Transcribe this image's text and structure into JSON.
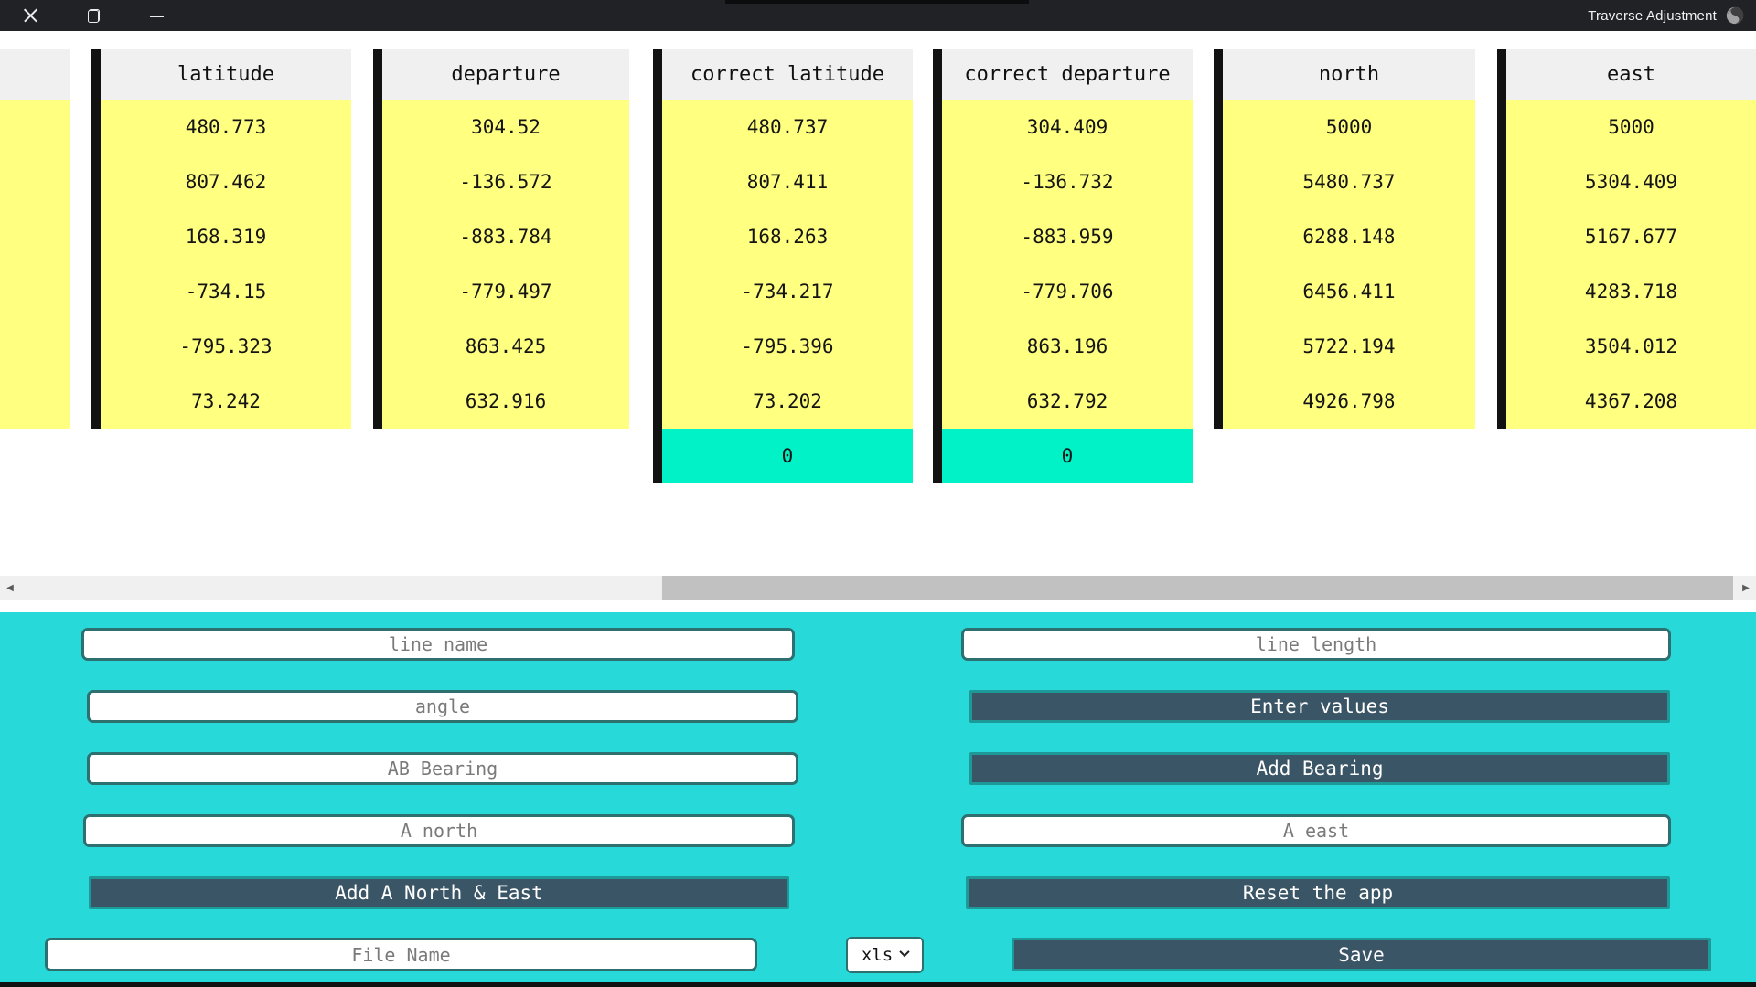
{
  "window": {
    "title": "Traverse Adjustment"
  },
  "icons": {
    "close": "close-icon",
    "restore": "restore-icon",
    "minimize": "minimize-icon",
    "globe": "globe-icon",
    "scroll_left_glyph": "◀",
    "scroll_right_glyph": "▶",
    "format_chevron": "chevron-down-icon"
  },
  "colors": {
    "titlebar": "#202226",
    "table_yellow": "#ffff80",
    "table_mint": "#00f2c6",
    "header_gray": "#f0f0f0",
    "panel_cyan": "#27d9d9",
    "button_slate": "#3a5565",
    "button_border_teal": "#1d9a98",
    "input_border_teal": "#2e6f6f"
  },
  "table": {
    "columns": [
      {
        "header": "",
        "values": [
          "",
          "",
          "",
          "",
          "",
          ""
        ]
      },
      {
        "header": "latitude",
        "values": [
          "480.773",
          "807.462",
          "168.319",
          "-734.15",
          "-795.323",
          "73.242"
        ]
      },
      {
        "header": "departure",
        "values": [
          "304.52",
          "-136.572",
          "-883.784",
          "-779.497",
          "863.425",
          "632.916"
        ]
      },
      {
        "header": "correct latitude",
        "values": [
          "480.737",
          "807.411",
          "168.263",
          "-734.217",
          "-795.396",
          "73.202"
        ],
        "footer": "0"
      },
      {
        "header": "correct departure",
        "values": [
          "304.409",
          "-136.732",
          "-883.959",
          "-779.706",
          "863.196",
          "632.792"
        ],
        "footer": "0"
      },
      {
        "header": "north",
        "values": [
          "5000",
          "5480.737",
          "6288.148",
          "6456.411",
          "5722.194",
          "4926.798"
        ]
      },
      {
        "header": "east",
        "values": [
          "5000",
          "5304.409",
          "5167.677",
          "4283.718",
          "3504.012",
          "4367.208"
        ]
      }
    ]
  },
  "form": {
    "line_name_placeholder": "line name",
    "line_length_placeholder": "line length",
    "angle_placeholder": "angle",
    "enter_values_label": "Enter values",
    "ab_bearing_placeholder": "AB Bearing",
    "add_bearing_label": "Add Bearing",
    "a_north_placeholder": "A north",
    "a_east_placeholder": "A east",
    "add_a_north_east_label": "Add A North & East",
    "reset_label": "Reset the app",
    "file_name_placeholder": "File Name",
    "format_selected": "xls",
    "save_label": "Save"
  }
}
